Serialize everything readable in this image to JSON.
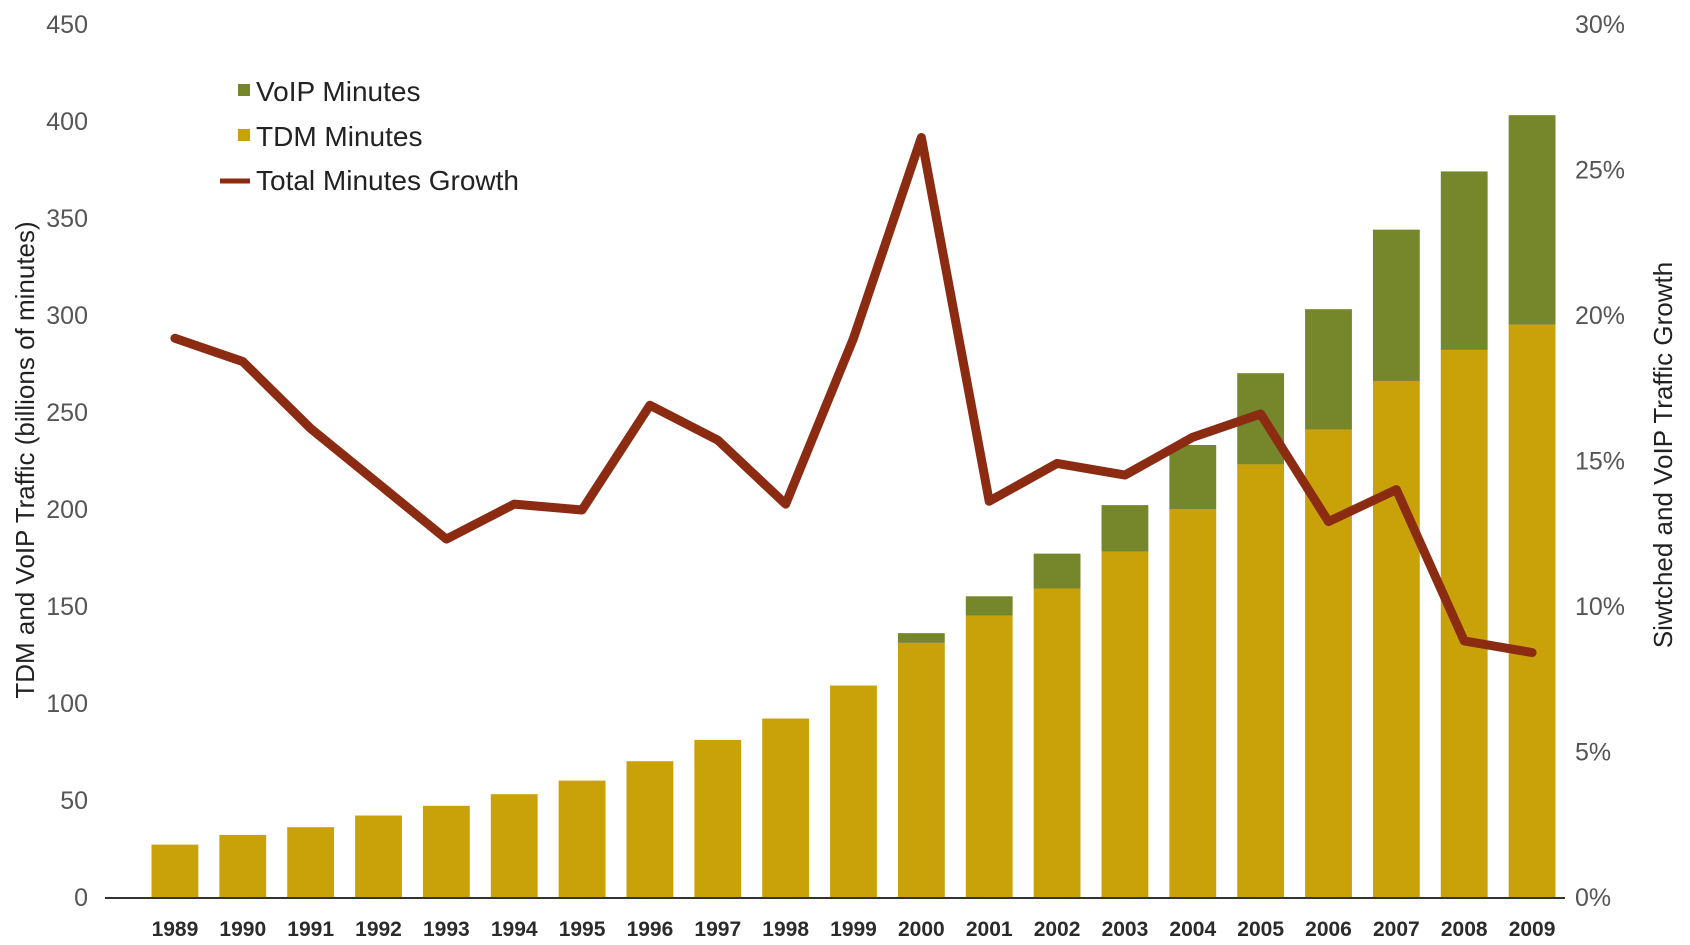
{
  "chart_data": {
    "type": "bar",
    "categories": [
      "1989",
      "1990",
      "1991",
      "1992",
      "1993",
      "1994",
      "1995",
      "1996",
      "1997",
      "1998",
      "1999",
      "2000",
      "2001",
      "2002",
      "2003",
      "2004",
      "2005",
      "2006",
      "2007",
      "2008",
      "2009"
    ],
    "series": [
      {
        "name": "TDM Minutes",
        "type": "bar",
        "axis": "left",
        "color": "#c9a109",
        "values": [
          27,
          32,
          36,
          42,
          47,
          53,
          60,
          70,
          81,
          92,
          109,
          131,
          145,
          159,
          178,
          200,
          223,
          241,
          266,
          282,
          295
        ]
      },
      {
        "name": "VoIP Minutes",
        "type": "bar",
        "axis": "left",
        "color": "#76862a",
        "values": [
          0,
          0,
          0,
          0,
          0,
          0,
          0,
          0,
          0,
          0,
          0,
          5,
          10,
          18,
          24,
          33,
          47,
          62,
          78,
          92,
          108
        ]
      },
      {
        "name": "Total Minutes Growth",
        "type": "line",
        "axis": "right",
        "color": "#8b2c12",
        "values": [
          19.2,
          18.4,
          16.1,
          14.2,
          12.3,
          13.5,
          13.3,
          16.9,
          15.7,
          13.5,
          19.2,
          26.1,
          13.6,
          14.9,
          14.5,
          15.8,
          16.6,
          12.9,
          14.0,
          8.8,
          8.4
        ]
      }
    ],
    "ylabel": "TDM and VoIP Traffic (billions of minutes)",
    "y2label": "Siwtched and VoIP Traffic Growth",
    "ylim": [
      0,
      450
    ],
    "y2lim": [
      0,
      30
    ],
    "yticks": [
      "0",
      "50",
      "100",
      "150",
      "200",
      "250",
      "300",
      "350",
      "400",
      "450"
    ],
    "y2ticks": [
      "0%",
      "5%",
      "10%",
      "15%",
      "20%",
      "25%",
      "30%"
    ],
    "legend": {
      "position": "top-left",
      "items": [
        "VoIP Minutes",
        "TDM Minutes",
        "Total Minutes Growth"
      ]
    },
    "grid": false,
    "stacked": true
  }
}
